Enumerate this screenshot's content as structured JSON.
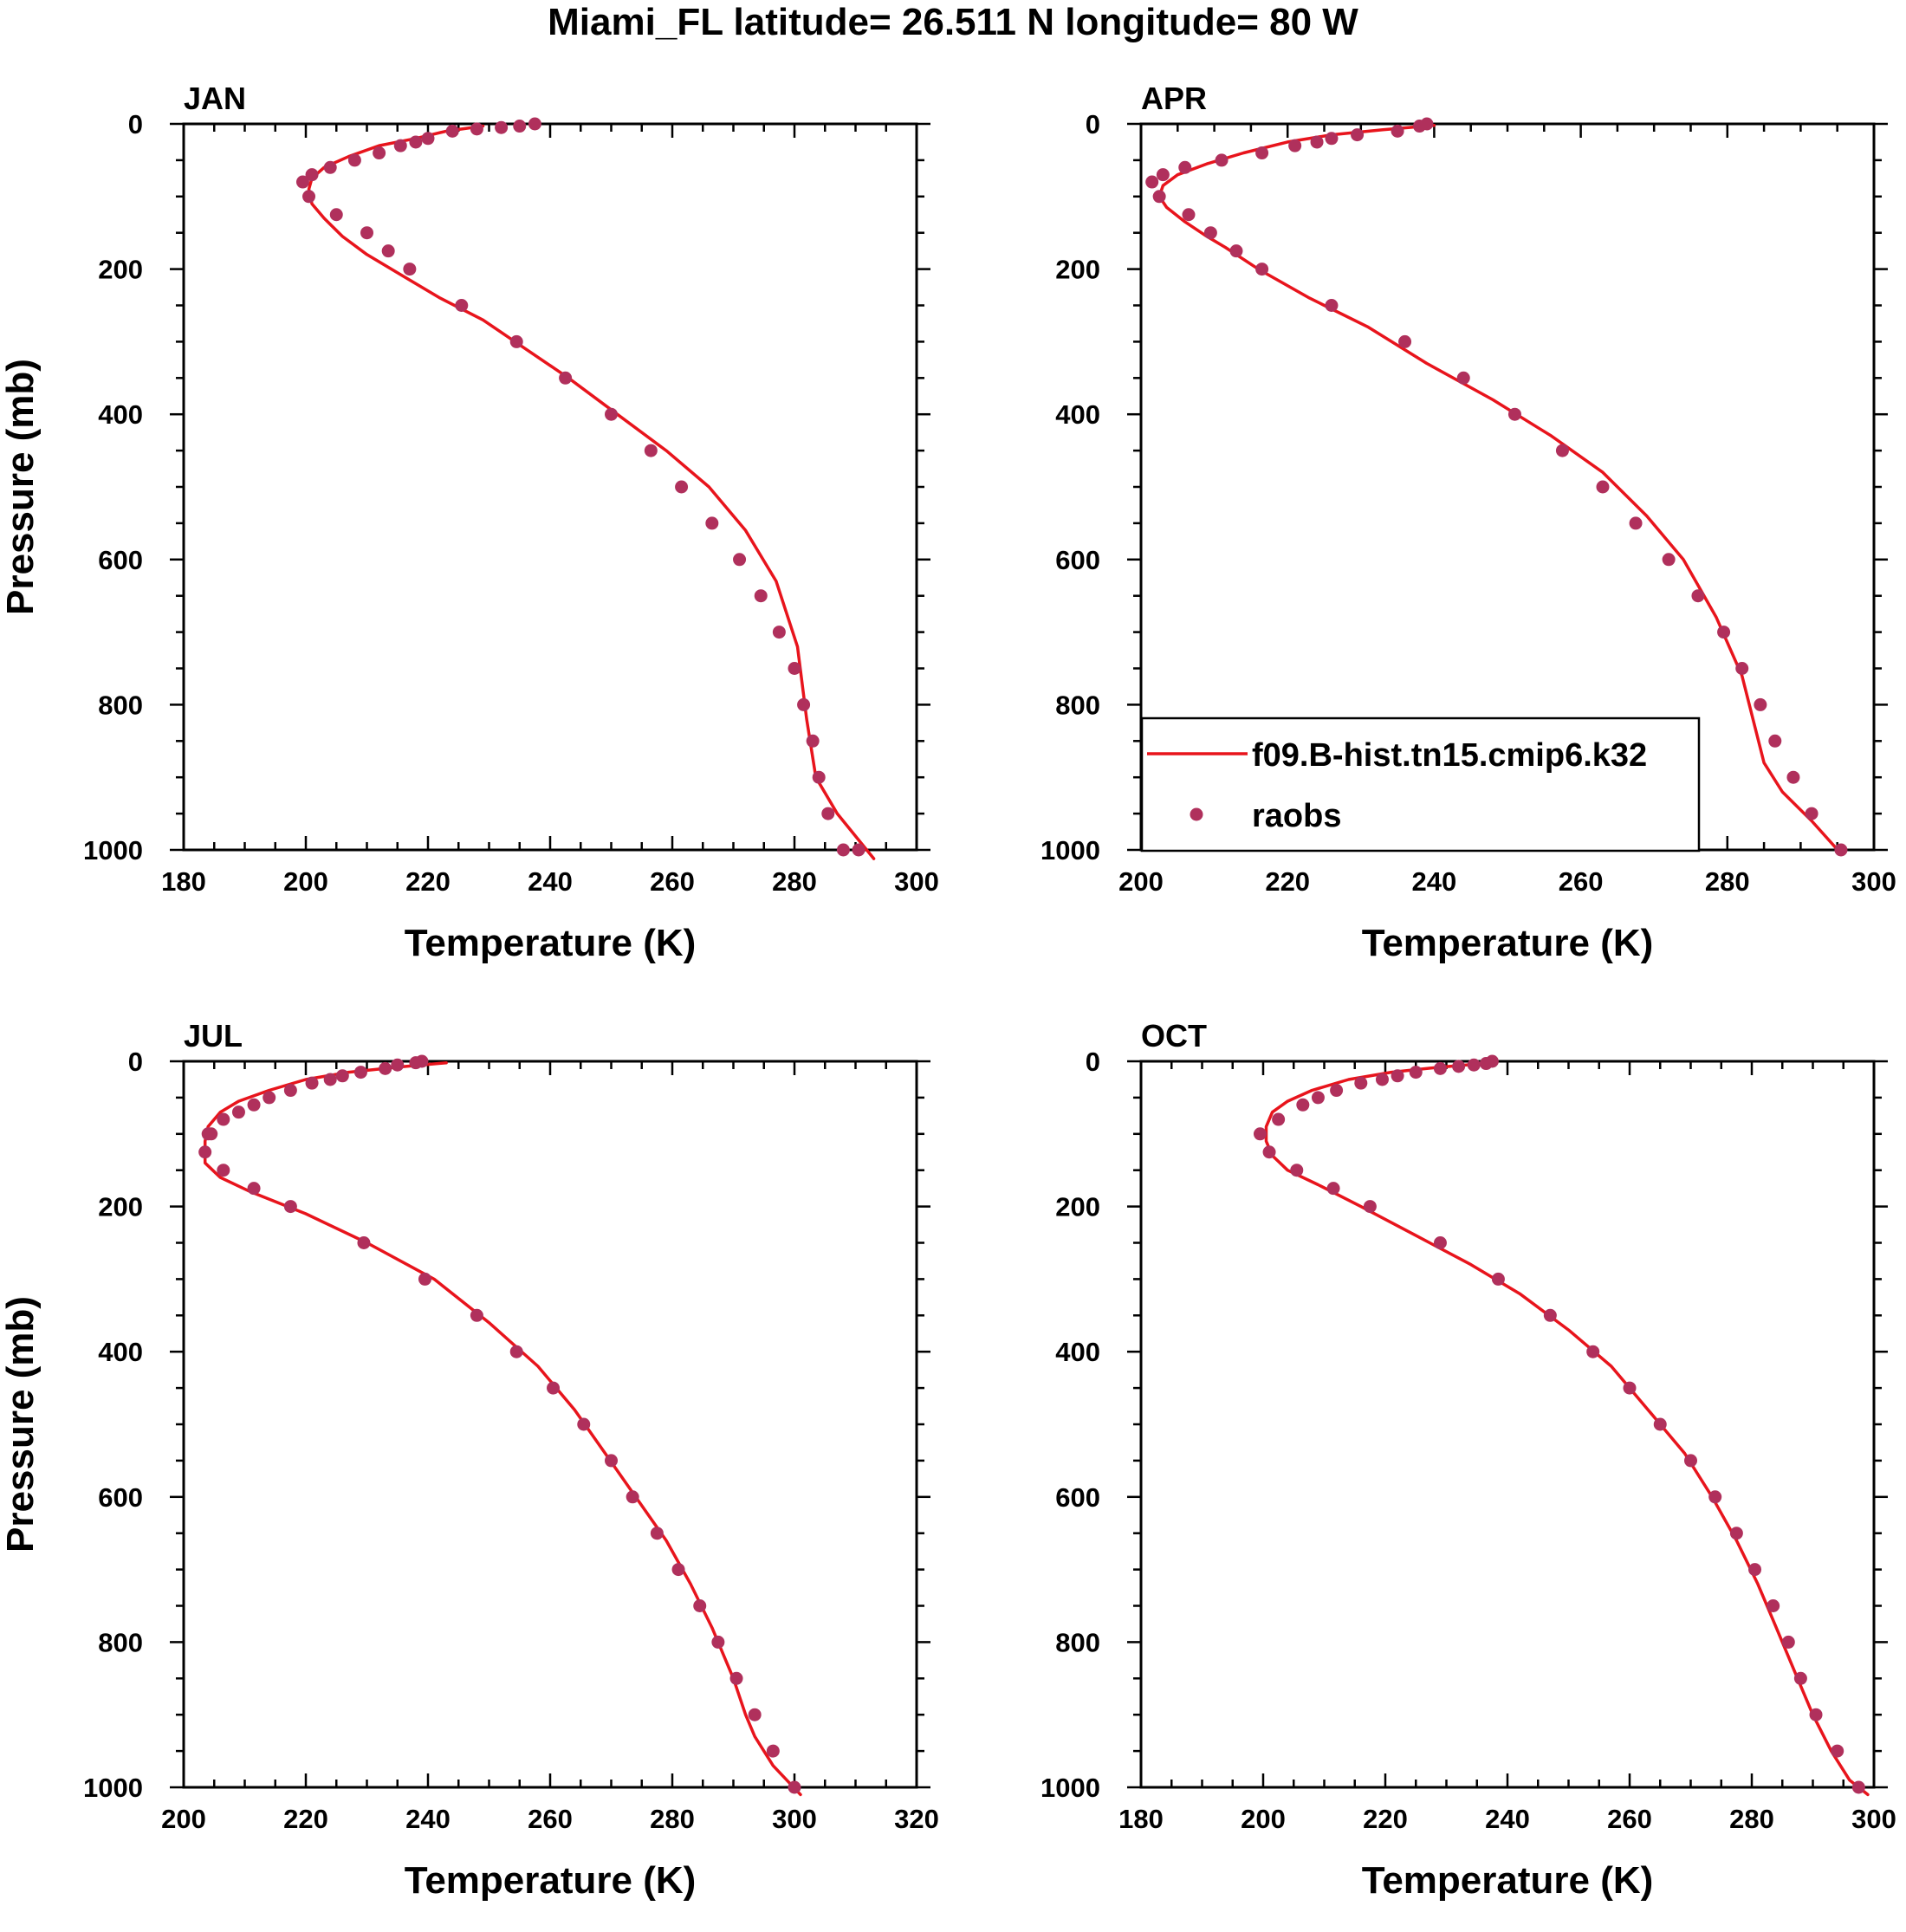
{
  "title": "Miami_FL  latitude= 26.511 N longitude= 80 W",
  "colors": {
    "model": "#e8141c",
    "obs": "#b0305c",
    "axis": "#000000"
  },
  "legend": {
    "model_label": "f09.B-hist.tn15.cmip6.k32",
    "obs_label": "raobs",
    "placement": "panel APR, lower-left"
  },
  "chart_data": [
    {
      "type": "line+scatter",
      "panel": "JAN",
      "xlabel": "Temperature (K)",
      "ylabel": "Pressure (mb)",
      "xlim": [
        180,
        300
      ],
      "ylim": [
        1000,
        0
      ],
      "xticks": [
        180,
        200,
        220,
        240,
        260,
        280,
        300
      ],
      "yticks": [
        0,
        200,
        400,
        600,
        800,
        1000
      ],
      "model": {
        "name": "f09.B-hist.tn15.cmip6.k32",
        "x": [
          229,
          223,
          218,
          212,
          207,
          203,
          201,
          200.5,
          201,
          203,
          206,
          210,
          216,
          222,
          229,
          236,
          243,
          251,
          259,
          266,
          272,
          277,
          280.5,
          282,
          283.5,
          287,
          293
        ],
        "y": [
          3,
          10,
          20,
          30,
          45,
          60,
          75,
          90,
          110,
          130,
          155,
          180,
          210,
          240,
          270,
          310,
          350,
          400,
          450,
          500,
          560,
          630,
          720,
          820,
          900,
          950,
          1012
        ]
      },
      "obs": {
        "name": "raobs",
        "x": [
          237.5,
          235,
          232,
          228,
          224,
          220,
          218,
          215.5,
          212,
          208,
          204,
          201,
          199.5,
          200.5,
          205,
          210,
          213.5,
          217,
          225.5,
          234.5,
          242.5,
          250,
          256.5,
          261.5,
          266.5,
          271,
          274.5,
          277.5,
          280,
          281.5,
          283,
          284,
          285.5,
          288,
          290.5
        ],
        "y": [
          0,
          3,
          5,
          7,
          10,
          20,
          25,
          30,
          40,
          50,
          60,
          70,
          80,
          100,
          125,
          150,
          175,
          200,
          250,
          300,
          350,
          400,
          450,
          500,
          550,
          600,
          650,
          700,
          750,
          800,
          850,
          900,
          950,
          1000,
          1000
        ]
      }
    },
    {
      "type": "line+scatter",
      "panel": "APR",
      "xlabel": "Temperature (K)",
      "ylabel": "",
      "xlim": [
        200,
        300
      ],
      "ylim": [
        1000,
        0
      ],
      "xticks": [
        200,
        220,
        240,
        260,
        280,
        300
      ],
      "yticks": [
        0,
        200,
        400,
        600,
        800,
        1000
      ],
      "model": {
        "name": "f09.B-hist.tn15.cmip6.k32",
        "x": [
          240,
          233,
          226,
          220,
          214,
          209,
          205,
          203,
          202.5,
          203.5,
          206,
          209,
          211.5,
          216,
          223,
          231,
          239,
          248,
          256,
          263,
          269,
          274,
          278.5,
          282,
          283.5,
          285,
          287.5,
          291.5,
          295.5
        ],
        "y": [
          2,
          8,
          15,
          25,
          40,
          55,
          70,
          85,
          100,
          115,
          135,
          155,
          170,
          200,
          240,
          280,
          330,
          380,
          430,
          480,
          540,
          600,
          680,
          760,
          820,
          880,
          920,
          960,
          1005
        ]
      },
      "obs": {
        "name": "raobs",
        "x": [
          239,
          238,
          235,
          229.5,
          226,
          224,
          221,
          216.5,
          211,
          206,
          203,
          201.5,
          202.5,
          206.5,
          209.5,
          213,
          216.5,
          226,
          236,
          244,
          251,
          257.5,
          263,
          267.5,
          272,
          276,
          279.5,
          282,
          284.5,
          286.5,
          289,
          291.5,
          295.5
        ],
        "y": [
          0,
          3,
          10,
          15,
          20,
          25,
          30,
          40,
          50,
          60,
          70,
          80,
          100,
          125,
          150,
          175,
          200,
          250,
          300,
          350,
          400,
          450,
          500,
          550,
          600,
          650,
          700,
          750,
          800,
          850,
          900,
          950,
          1000
        ]
      }
    },
    {
      "type": "line+scatter",
      "panel": "JUL",
      "xlabel": "Temperature (K)",
      "ylabel": "Pressure (mb)",
      "xlim": [
        200,
        320
      ],
      "ylim": [
        1000,
        0
      ],
      "xticks": [
        200,
        220,
        240,
        260,
        280,
        300,
        320
      ],
      "yticks": [
        0,
        200,
        400,
        600,
        800,
        1000
      ],
      "model": {
        "name": "f09.B-hist.tn15.cmip6.k32",
        "x": [
          243,
          235,
          227,
          220,
          214,
          209,
          206,
          204,
          203.5,
          203.5,
          206,
          211,
          220,
          230,
          241,
          250,
          258,
          264,
          269,
          274,
          279,
          283,
          286.5,
          290,
          292,
          293.5,
          296.5,
          301
        ],
        "y": [
          2,
          8,
          15,
          25,
          40,
          55,
          70,
          90,
          110,
          140,
          160,
          180,
          210,
          250,
          300,
          360,
          420,
          480,
          540,
          600,
          660,
          720,
          780,
          850,
          900,
          930,
          970,
          1010
        ]
      },
      "obs": {
        "name": "raobs",
        "x": [
          239,
          238,
          235,
          233,
          229,
          226,
          224,
          221,
          217.5,
          214,
          211.5,
          209,
          206.5,
          204.5,
          204,
          203.5,
          206.5,
          211.5,
          217.5,
          229.5,
          239.5,
          248,
          254.5,
          260.5,
          265.5,
          270,
          273.5,
          277.5,
          281,
          284.5,
          287.5,
          290.5,
          293.5,
          296.5,
          300
        ],
        "y": [
          0,
          2,
          5,
          10,
          15,
          20,
          25,
          30,
          40,
          50,
          60,
          70,
          80,
          100,
          100,
          125,
          150,
          175,
          200,
          250,
          300,
          350,
          400,
          450,
          500,
          550,
          600,
          650,
          700,
          750,
          800,
          850,
          900,
          950,
          1000
        ]
      }
    },
    {
      "type": "line+scatter",
      "panel": "OCT",
      "xlabel": "Temperature (K)",
      "ylabel": "",
      "xlim": [
        180,
        300
      ],
      "ylim": [
        1000,
        0
      ],
      "xticks": [
        180,
        200,
        220,
        240,
        260,
        280,
        300
      ],
      "yticks": [
        0,
        200,
        400,
        600,
        800,
        1000
      ],
      "model": {
        "name": "f09.B-hist.tn15.cmip6.k32",
        "x": [
          237.5,
          229,
          221,
          214,
          208,
          204,
          201.5,
          200.5,
          200.5,
          201.5,
          204,
          209,
          216,
          225,
          234,
          242,
          250,
          257,
          263,
          269,
          273.5,
          277.5,
          281,
          284,
          287,
          290,
          293,
          296,
          299
        ],
        "y": [
          2,
          8,
          15,
          25,
          40,
          55,
          70,
          90,
          110,
          130,
          150,
          170,
          200,
          240,
          280,
          320,
          370,
          420,
          480,
          540,
          600,
          660,
          720,
          780,
          840,
          900,
          950,
          990,
          1010
        ]
      },
      "obs": {
        "name": "raobs",
        "x": [
          237.5,
          236.5,
          234.5,
          232,
          229,
          225,
          222,
          219.5,
          216,
          212,
          209,
          206.5,
          202.5,
          199.5,
          201,
          205.5,
          211.5,
          217.5,
          229,
          238.5,
          247,
          254,
          260,
          265,
          270,
          274,
          277.5,
          280.5,
          283.5,
          286,
          288,
          290.5,
          294,
          297.5
        ],
        "y": [
          0,
          3,
          5,
          7,
          10,
          15,
          20,
          25,
          30,
          40,
          50,
          60,
          80,
          100,
          125,
          150,
          175,
          200,
          250,
          300,
          350,
          400,
          450,
          500,
          550,
          600,
          650,
          700,
          750,
          800,
          850,
          900,
          950,
          1000
        ]
      }
    }
  ]
}
